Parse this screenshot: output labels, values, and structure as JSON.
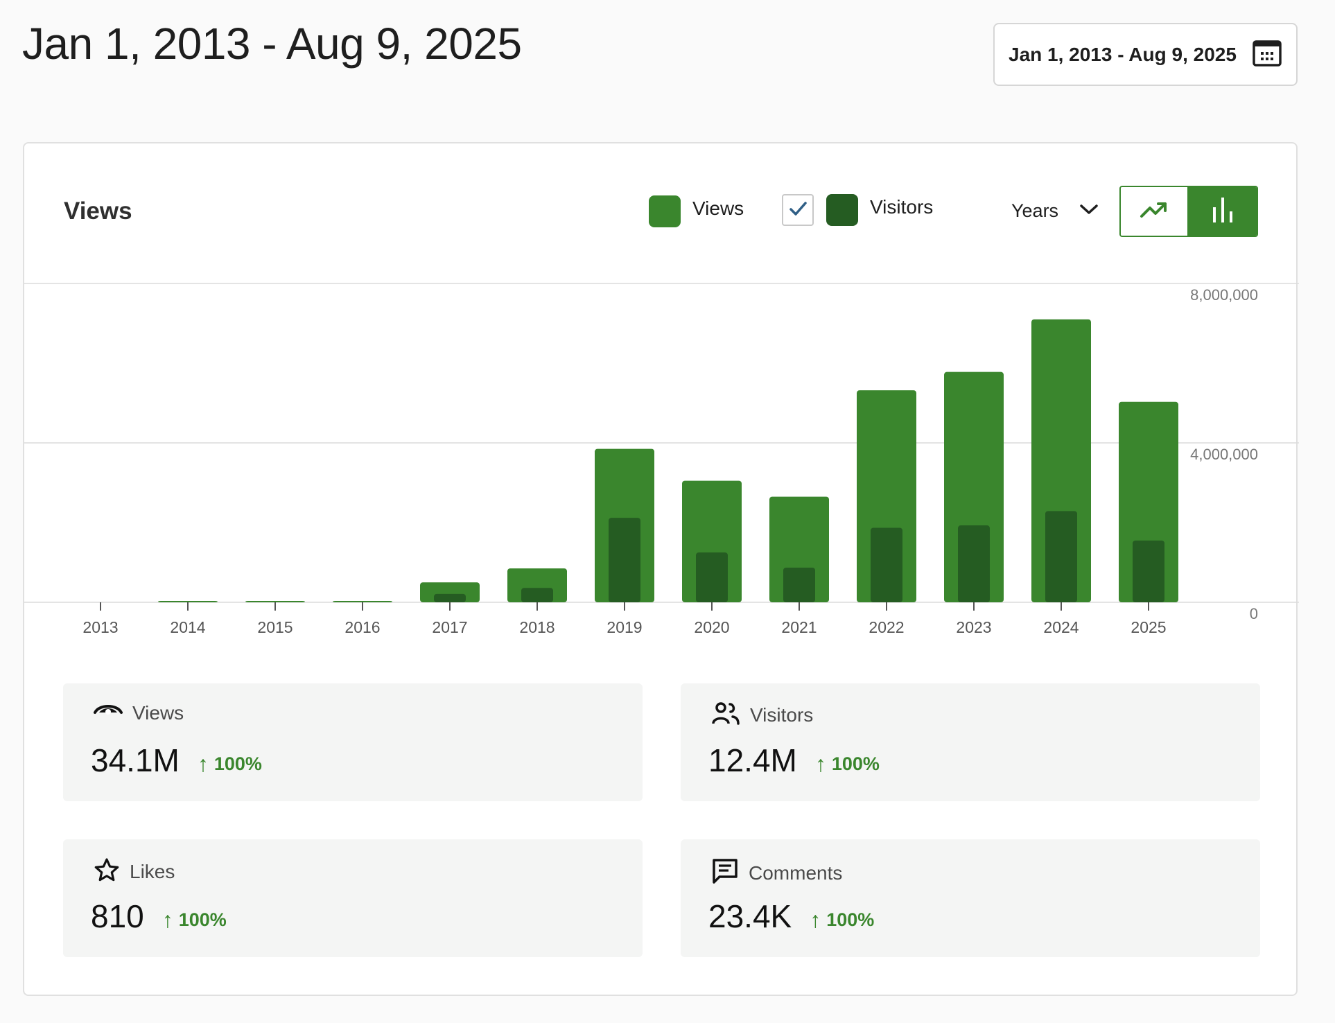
{
  "header": {
    "title": "Jan 1, 2013 - Aug 9, 2025",
    "date_range_label": "Jan 1, 2013 - Aug 9, 2025",
    "date_range_icon": "calendar-icon"
  },
  "card": {
    "title": "Views",
    "legend": {
      "views_label": "Views",
      "visitors_label": "Visitors",
      "visitors_checked": true
    },
    "period": {
      "selected": "Years"
    },
    "chart_toggle": {
      "options": [
        "line",
        "bar"
      ],
      "selected": "bar"
    }
  },
  "colors": {
    "views": "#3a862d",
    "visitors": "#255c22",
    "grid": "#dcdcdc",
    "axis_text": "#555555",
    "positive": "#3a862d"
  },
  "chart_data": {
    "type": "bar",
    "categories": [
      "2013",
      "2014",
      "2015",
      "2016",
      "2017",
      "2018",
      "2019",
      "2020",
      "2021",
      "2022",
      "2023",
      "2024",
      "2025"
    ],
    "series": [
      {
        "name": "Views",
        "values": [
          0,
          10000,
          10000,
          20000,
          500000,
          850000,
          3850000,
          3050000,
          2650000,
          5320000,
          5780000,
          7100000,
          5030000
        ]
      },
      {
        "name": "Visitors",
        "values": [
          0,
          0,
          0,
          0,
          210000,
          360000,
          2120000,
          1250000,
          870000,
          1870000,
          1930000,
          2290000,
          1550000
        ]
      }
    ],
    "yticks": [
      "8,000,000",
      "4,000,000",
      "0"
    ],
    "ylim": [
      0,
      8000000
    ],
    "y_axis_position": "right",
    "grid": true
  },
  "stats": [
    {
      "id": "views",
      "label": "Views",
      "icon": "eye-icon",
      "value": "34.1M",
      "change": "100%",
      "selected": true
    },
    {
      "id": "visitors",
      "label": "Visitors",
      "icon": "people-icon",
      "value": "12.4M",
      "change": "100%",
      "selected": false
    },
    {
      "id": "likes",
      "label": "Likes",
      "icon": "star-icon",
      "value": "810",
      "change": "100%",
      "selected": false
    },
    {
      "id": "comments",
      "label": "Comments",
      "icon": "comment-icon",
      "value": "23.4K",
      "change": "100%",
      "selected": false
    }
  ]
}
